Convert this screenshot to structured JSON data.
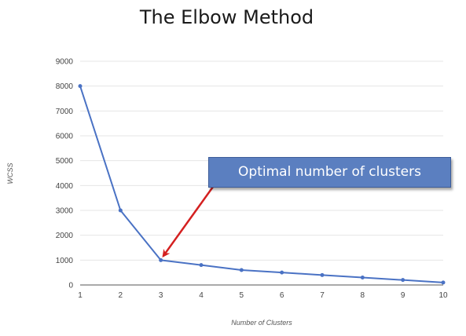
{
  "chart_data": {
    "type": "line",
    "title": "The Elbow Method",
    "xlabel": "Number of Clusters",
    "ylabel": "WCSS",
    "x": [
      1,
      2,
      3,
      4,
      5,
      6,
      7,
      8,
      9,
      10
    ],
    "series": [
      {
        "values": [
          8000,
          3000,
          1000,
          800,
          600,
          500,
          400,
          300,
          200,
          100
        ]
      }
    ],
    "xticks": [
      1,
      2,
      3,
      4,
      5,
      6,
      7,
      8,
      9,
      10
    ],
    "yticks": [
      0,
      1000,
      2000,
      3000,
      4000,
      5000,
      6000,
      7000,
      8000,
      9000
    ],
    "xlim": [
      1,
      10
    ],
    "ylim": [
      0,
      9000
    ],
    "grid": "horizontal",
    "annotations": [
      {
        "text": "Optimal number of clusters",
        "target_x": 3,
        "target_y": 1000
      }
    ]
  },
  "colors": {
    "line": "#4a72c4",
    "arrow": "#d42020",
    "annotation_box": "#5b7fc0",
    "grid": "#e4e4e4"
  }
}
